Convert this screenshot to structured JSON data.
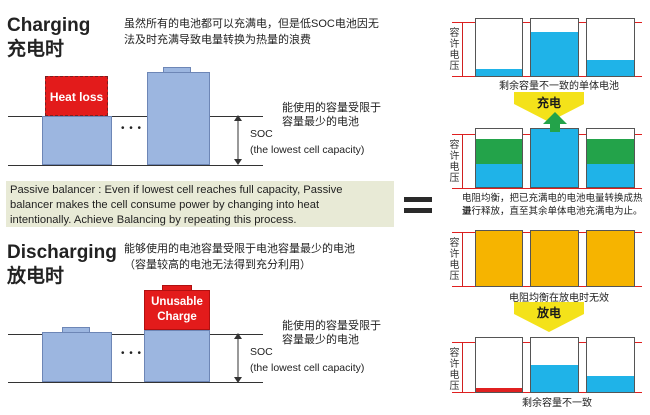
{
  "left": {
    "charging_title_en": "Charging",
    "charging_title_cn": "充电时",
    "charging_desc": [
      "虽然所有的电池都可以充满电，但是低SOC电池因无",
      "法及时充满导致电量转换为热量的浪费"
    ],
    "heat_loss_label": "Heat loss",
    "ellipsis": "• • •",
    "capacity_limited": [
      "能使用的容量受限于",
      "容量最少的电池"
    ],
    "soc_label": "SOC",
    "soc_sub": "(the lowest cell capacity)",
    "passive_text": [
      "Passive balancer : Even if lowest cell reaches full capacity, Passive",
      "balancer makes the cell consume power by changing into heat",
      "intentionally.  Achieve Balancing by repeating this process."
    ],
    "discharging_title_en": "Discharging",
    "discharging_title_cn": "放电时",
    "discharging_desc": [
      "能够使用的电池容量受限于电池容量最少的电池",
      "（容量较高的电池无法得到充分利用）"
    ],
    "unusable_label": [
      "Unusable",
      "Charge"
    ],
    "capacity_limited_2": [
      "能使用的容量受限于",
      "容量最少的电池"
    ],
    "soc_label_2": "SOC",
    "soc_sub_2": "(the lowest cell capacity)"
  },
  "right": {
    "allow_voltage": "容许电压",
    "panel1_caption": "剩余容量不一致的单体电池",
    "charge_label": "充电",
    "panel2_caption": [
      "电阻均衡，把已充满电的电池电量转换成热量",
      "进行释放，直至其余单体电池充满电为止。"
    ],
    "panel3_caption": "电阻均衡在放电时无效",
    "discharge_label": "放电",
    "panel4_caption": "剩余容量不一致",
    "levels_panel1": [
      0.12,
      0.78,
      0.28
    ],
    "levels_panel2_green": [
      0.42,
      0.0,
      0.42
    ],
    "levels_panel4": [
      0.08,
      0.5,
      0.3
    ]
  },
  "colors": {
    "battery_blue": "#9cb6e0",
    "heat_red": "#e31b1b",
    "cyan_fill": "#1fb3e8",
    "green_fill": "#23a34a",
    "orange_fill": "#f6b400",
    "arrow_yellow": "#f4e21a",
    "passive_bg": "#e8ead6"
  }
}
